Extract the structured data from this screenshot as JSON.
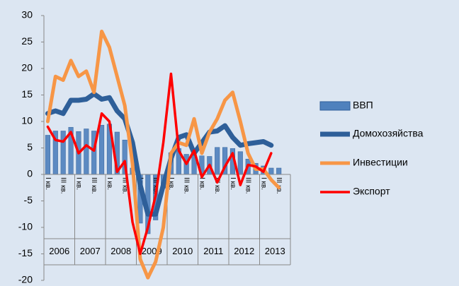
{
  "chart_data": {
    "type": "bar_line",
    "categories": [
      "I кв.",
      null,
      "III кв.",
      null,
      "I кв.",
      null,
      "III кв.",
      null,
      "I кв.",
      null,
      "III кв.",
      null,
      "I кв.",
      null,
      "III кв.",
      null,
      "I кв.",
      null,
      "III кв.",
      null,
      "I кв.",
      null,
      "III кв.",
      null,
      "I кв.",
      null,
      "III кв.",
      null,
      "I кв.",
      null,
      "III кв.",
      null
    ],
    "years": [
      "2006",
      "2007",
      "2008",
      "2009",
      "2010",
      "2011",
      "2012",
      "2013"
    ],
    "series": [
      {
        "name": "ВВП",
        "kind": "bar",
        "color": "#4f81bd",
        "values": [
          7.4,
          8.2,
          8.2,
          8.9,
          8.1,
          8.6,
          8.2,
          9.3,
          9.5,
          8.0,
          6.5,
          1.2,
          -9.2,
          -11.2,
          -8.6,
          -2.6,
          4.1,
          4.9,
          3.8,
          4.4,
          3.5,
          3.4,
          5.1,
          5.1,
          4.9,
          4.3,
          2.9,
          2.1,
          1.6,
          1.2,
          1.2,
          null
        ]
      },
      {
        "name": "Домохозяйства",
        "kind": "line",
        "color": "#2e5f99",
        "values": [
          11.5,
          12,
          11.5,
          14,
          14,
          14.2,
          15.2,
          14.2,
          14.5,
          12,
          10.5,
          6,
          -2,
          -7.5,
          -7.5,
          -2,
          3,
          7,
          7.5,
          4,
          6,
          8,
          8.2,
          9.2,
          7,
          5.5,
          5.8,
          6,
          6.2,
          5.5,
          null,
          null
        ]
      },
      {
        "name": "Инвестиции",
        "kind": "line",
        "color": "#f79646",
        "values": [
          10,
          18.5,
          17.8,
          21.5,
          18.5,
          19.5,
          15.5,
          27,
          24,
          18.5,
          13,
          2,
          -16,
          -19.5,
          -16.5,
          -10,
          4,
          6,
          5.5,
          10.5,
          4,
          8,
          10.5,
          14,
          15.5,
          10,
          4,
          1,
          1,
          -1,
          -2.5,
          null
        ]
      },
      {
        "name": "Экспорт",
        "kind": "line",
        "color": "#ff0000",
        "values": [
          9,
          6.5,
          6.2,
          8,
          4,
          5.5,
          4.5,
          11.5,
          10,
          0.5,
          2.5,
          -9,
          -15,
          -10,
          -4,
          6,
          19,
          4.5,
          2,
          4.5,
          -0.5,
          1.8,
          -1.5,
          1.5,
          4,
          -2,
          1.8,
          1.5,
          0.5,
          4,
          null,
          null
        ]
      }
    ],
    "ylim": [
      -20,
      30
    ],
    "yticks": [
      -20,
      -15,
      -10,
      -5,
      0,
      5,
      10,
      15,
      20,
      25,
      30
    ]
  }
}
